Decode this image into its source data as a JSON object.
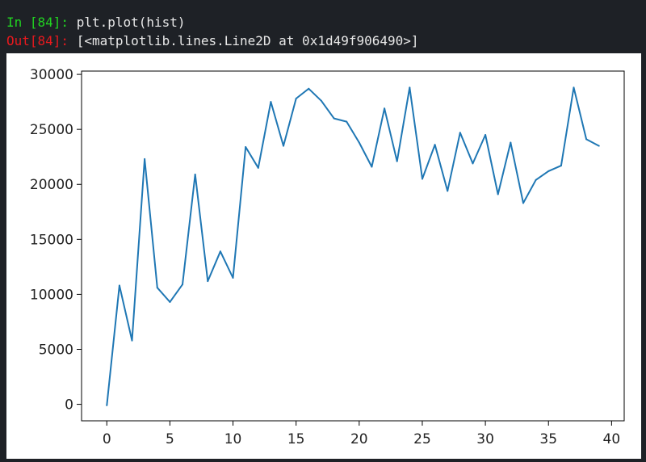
{
  "notebook": {
    "input_prompt": "In [84]:",
    "input_code": "plt.plot(hist)",
    "output_prompt": "Out[84]:",
    "output_text": "[<matplotlib.lines.Line2D at 0x1d49f906490>]"
  },
  "colors": {
    "background": "#1e2126",
    "in_prompt": "#21d321",
    "out_prompt": "#e8191e",
    "line": "#1f77b4"
  },
  "chart_data": {
    "type": "line",
    "title": "",
    "xlabel": "",
    "ylabel": "",
    "x": [
      0,
      1,
      2,
      3,
      4,
      5,
      6,
      7,
      8,
      9,
      10,
      11,
      12,
      13,
      14,
      15,
      16,
      17,
      18,
      19,
      20,
      21,
      22,
      23,
      24,
      25,
      26,
      27,
      28,
      29,
      30,
      31,
      32,
      33,
      34,
      35,
      36,
      37,
      38,
      39
    ],
    "series": [
      {
        "values": [
          -100,
          10800,
          5800,
          22300,
          10600,
          9300,
          10900,
          20900,
          11200,
          13900,
          11500,
          23400,
          21500,
          27500,
          23500,
          27800,
          28700,
          27600,
          26000,
          25700,
          23800,
          21600,
          26900,
          22100,
          28800,
          20500,
          23600,
          19400,
          24700,
          21900,
          24500,
          19100,
          23800,
          18300,
          20400,
          21200,
          21700,
          28800,
          24100,
          23500
        ]
      }
    ],
    "xlim": [
      -2,
      41
    ],
    "ylim": [
      -1500,
      30300
    ],
    "xticks": [
      0,
      5,
      10,
      15,
      20,
      25,
      30,
      35,
      40
    ],
    "xtick_labels": [
      "0",
      "5",
      "10",
      "15",
      "20",
      "25",
      "30",
      "35",
      "40"
    ],
    "yticks": [
      0,
      5000,
      10000,
      15000,
      20000,
      25000,
      30000
    ],
    "ytick_labels": [
      "0",
      "5000",
      "10000",
      "15000",
      "20000",
      "25000",
      "30000"
    ],
    "grid": false,
    "legend": "none"
  }
}
